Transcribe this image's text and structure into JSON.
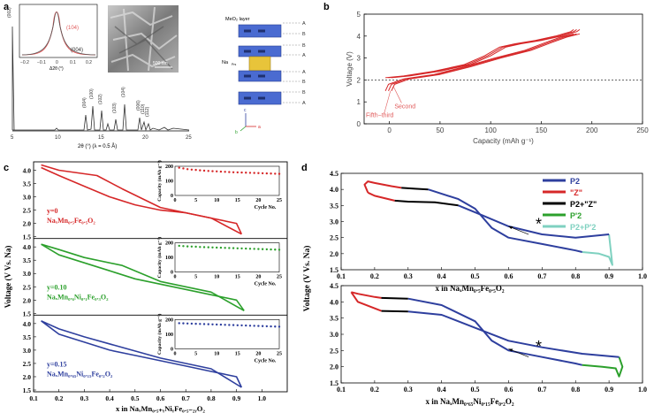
{
  "panel_labels": {
    "a": "a",
    "b": "b",
    "c": "c",
    "d": "d"
  },
  "colors": {
    "red": "#d62728",
    "pink": "#e05a5a",
    "green": "#2ca02c",
    "blue": "#2e3f9e",
    "black": "#000000",
    "mint": "#7fd1c0",
    "gray": "#999999"
  },
  "panel_a": {
    "xlabel": "2θ (°) (λ = 0.5 Å)",
    "ticks": [
      "5",
      "10",
      "15",
      "20",
      "25"
    ],
    "peaks": [
      "(002)",
      "(004)",
      "(100)",
      "(102)",
      "(103)",
      "(104)",
      "(006)",
      "(110)",
      "(112)"
    ],
    "inset": {
      "xlabel": "Δ2θ (°)",
      "ticks": [
        "−0.2",
        "−0.1",
        "0",
        "0.1",
        "0.2"
      ],
      "labels": [
        "(104)",
        "(004)"
      ]
    },
    "sem_scale": "500 nm",
    "structure_labels": {
      "layer": "MeO₂ layer",
      "na": "Na",
      "na_sub": "Prs",
      "stack": [
        "A",
        "B",
        "B",
        "A",
        "A",
        "B",
        "B",
        "A"
      ]
    },
    "axes_glyph": {
      "c": "c",
      "a": "a",
      "b": "b"
    }
  },
  "chart_data": [
    {
      "panel": "b",
      "type": "line",
      "xlabel": "Capacity (mAh g⁻¹)",
      "ylabel": "Voltage (V)",
      "xlim": [
        -25,
        250
      ],
      "ylim": [
        0,
        5
      ],
      "xticks": [
        "0",
        "50",
        "100",
        "150",
        "200",
        "250"
      ],
      "yticks": [
        "0",
        "1",
        "2",
        "3",
        "4",
        "5"
      ],
      "reference_line": 2.0,
      "annotations": [
        "Second",
        "Fifth−third"
      ],
      "series": [
        {
          "x": [
            2,
            20,
            50,
            80,
            100,
            115,
            130,
            150,
            170,
            185,
            188
          ],
          "y": [
            2.1,
            2.18,
            2.4,
            2.7,
            3.1,
            3.5,
            3.65,
            3.8,
            4.0,
            4.2,
            4.3
          ]
        },
        {
          "x": [
            188,
            175,
            160,
            140,
            110,
            80,
            50,
            20,
            5,
            2
          ],
          "y": [
            4.1,
            3.95,
            3.7,
            3.35,
            3.0,
            2.6,
            2.25,
            2.05,
            1.8,
            1.5
          ]
        }
      ]
    },
    {
      "panel": "c",
      "type": "line",
      "xlabel": "x in NaₓMn₀.₅₊ᵧNiᵧFe₀.₅₋₂ᵧO₂",
      "ylabel": "Voltage (V Vs. Na)",
      "xlim": [
        0.1,
        1.1
      ],
      "ylim": [
        1.5,
        4.25
      ],
      "xticks": [
        "0.1",
        "0.2",
        "0.3",
        "0.4",
        "0.5",
        "0.6",
        "0.7",
        "0.8",
        "0.9",
        "1.0"
      ],
      "yticks": [
        "1.5",
        "2.0",
        "2.5",
        "3.0",
        "3.5",
        "4.0"
      ],
      "subplots": [
        {
          "label": "y=0",
          "formula": "NaₓMn₀.₅Fe₀.₅O₂",
          "color_key": "red",
          "series": [
            {
              "x": [
                0.13,
                0.2,
                0.3,
                0.4,
                0.5,
                0.6,
                0.7,
                0.8,
                0.9,
                0.92
              ],
              "y": [
                4.1,
                3.8,
                3.4,
                3.0,
                2.7,
                2.5,
                2.4,
                2.2,
                2.0,
                1.6
              ]
            },
            {
              "x": [
                0.92,
                0.8,
                0.6,
                0.45,
                0.35,
                0.2,
                0.13
              ],
              "y": [
                1.6,
                2.2,
                2.6,
                3.3,
                3.8,
                4.0,
                4.2
              ]
            }
          ],
          "inset": {
            "xlabel": "Cycle No.",
            "ylabel": "Capacity (mAh g⁻¹)",
            "xticks": [
              "0",
              "5",
              "10",
              "15",
              "20",
              "25"
            ],
            "yticks": [
              "0",
              "100",
              "200"
            ],
            "values": [
              190,
              185,
              180,
              177,
              175,
              172,
              170,
              168,
              166,
              165,
              163,
              162,
              160,
              159,
              158,
              157,
              156,
              155,
              154,
              153,
              152,
              151,
              150,
              149,
              148
            ]
          }
        },
        {
          "label": "y=0.10",
          "formula": "NaₓMn₀.₆Ni₀.₁Fe₀.₃O₂",
          "color_key": "green",
          "series": [
            {
              "x": [
                0.13,
                0.2,
                0.3,
                0.4,
                0.5,
                0.6,
                0.7,
                0.8,
                0.9,
                0.93
              ],
              "y": [
                4.1,
                3.7,
                3.4,
                3.1,
                2.8,
                2.6,
                2.4,
                2.2,
                2.0,
                1.6
              ]
            },
            {
              "x": [
                0.93,
                0.8,
                0.6,
                0.45,
                0.3,
                0.2,
                0.13
              ],
              "y": [
                1.6,
                2.3,
                2.7,
                3.3,
                3.6,
                3.9,
                4.1
              ]
            }
          ],
          "inset": {
            "xlabel": "Cycle No.",
            "ylabel": "Capacity (mAh g⁻¹)",
            "xticks": [
              "0",
              "5",
              "10",
              "15",
              "20",
              "25"
            ],
            "yticks": [
              "0",
              "100",
              "200"
            ],
            "values": [
              180,
              178,
              176,
              175,
              174,
              172,
              171,
              170,
              169,
              168,
              167,
              166,
              165,
              164,
              163,
              162,
              161,
              160,
              159,
              158,
              157,
              156,
              155,
              154,
              153
            ]
          }
        },
        {
          "label": "y=0.15",
          "formula": "NaₓMn₀.₆₅Ni₀.₁₅Fe₀.₂O₂",
          "color_key": "blue",
          "series": [
            {
              "x": [
                0.13,
                0.2,
                0.3,
                0.4,
                0.5,
                0.6,
                0.7,
                0.8,
                0.9,
                0.92
              ],
              "y": [
                4.1,
                3.6,
                3.3,
                3.0,
                2.8,
                2.6,
                2.4,
                2.2,
                2.0,
                1.6
              ]
            },
            {
              "x": [
                0.92,
                0.8,
                0.6,
                0.45,
                0.3,
                0.2,
                0.13
              ],
              "y": [
                1.6,
                2.3,
                2.7,
                3.1,
                3.5,
                3.8,
                4.1
              ]
            }
          ],
          "inset": {
            "xlabel": "Cycle No.",
            "ylabel": "Capacity (mAh g⁻¹)",
            "xticks": [
              "0",
              "5",
              "10",
              "15",
              "20",
              "25"
            ],
            "yticks": [
              "0",
              "100",
              "200"
            ],
            "values": [
              175,
              174,
              173,
              172,
              171,
              170,
              169,
              168,
              167,
              166,
              165,
              164,
              163,
              162,
              161,
              160,
              159,
              158,
              157,
              156,
              155,
              154,
              153,
              152,
              151
            ]
          }
        }
      ]
    },
    {
      "panel": "d",
      "type": "line",
      "ylabel": "Voltage (V Vs. Na)",
      "legend": [
        "P2",
        "\"Z\"",
        "P2+\"Z\"",
        "P'2",
        "P2+P'2"
      ],
      "legend_colors": [
        "blue",
        "red",
        "black",
        "green",
        "mint"
      ],
      "xlim": [
        0.1,
        1.0
      ],
      "ylim": [
        1.5,
        4.5
      ],
      "xticks": [
        "0.1",
        "0.2",
        "0.3",
        "0.4",
        "0.5",
        "0.6",
        "0.7",
        "0.8",
        "0.9",
        "1.0"
      ],
      "yticks": [
        "1.5",
        "2.0",
        "2.5",
        "3.0",
        "3.5",
        "4.0",
        "4.5"
      ],
      "marker": "*",
      "subplots": [
        {
          "xlabel": "x in NaₓMn₀.₅Fe₀.₅O₂",
          "segments": [
            {
              "phase": "red",
              "x": [
                0.18,
                0.17,
                0.18,
                0.2,
                0.25,
                0.28
              ],
              "y": [
                3.9,
                4.15,
                4.25,
                4.2,
                4.1,
                4.05
              ]
            },
            {
              "phase": "black",
              "x": [
                0.28,
                0.32,
                0.36
              ],
              "y": [
                4.05,
                4.02,
                4.0
              ]
            },
            {
              "phase": "blue",
              "x": [
                0.36,
                0.45,
                0.5,
                0.55,
                0.6,
                0.7,
                0.8,
                0.82
              ],
              "y": [
                4.0,
                3.7,
                3.4,
                2.8,
                2.5,
                2.3,
                2.1,
                2.05
              ]
            },
            {
              "phase": "mint",
              "x": [
                0.82,
                0.87,
                0.9,
                0.91,
                0.9
              ],
              "y": [
                2.05,
                2.0,
                1.9,
                1.65,
                2.6
              ]
            },
            {
              "phase": "blue",
              "x": [
                0.9,
                0.8,
                0.7,
                0.6,
                0.52,
                0.45
              ],
              "y": [
                2.6,
                2.5,
                2.6,
                2.85,
                3.2,
                3.5
              ]
            },
            {
              "phase": "black",
              "x": [
                0.45,
                0.38,
                0.3,
                0.26
              ],
              "y": [
                3.5,
                3.6,
                3.62,
                3.65
              ]
            },
            {
              "phase": "red",
              "x": [
                0.26,
                0.2,
                0.18
              ],
              "y": [
                3.65,
                3.8,
                3.9
              ]
            }
          ]
        },
        {
          "xlabel": "x in NaₓMn₀.₆₅Ni₀.₁₅Fe₀.₂O₂",
          "segments": [
            {
              "phase": "red",
              "x": [
                0.13,
                0.15,
                0.2,
                0.22
              ],
              "y": [
                4.3,
                4.25,
                4.15,
                4.12
              ]
            },
            {
              "phase": "black",
              "x": [
                0.22,
                0.3
              ],
              "y": [
                4.12,
                4.1
              ]
            },
            {
              "phase": "blue",
              "x": [
                0.3,
                0.4,
                0.5,
                0.55,
                0.6,
                0.7,
                0.8,
                0.82
              ],
              "y": [
                4.1,
                3.9,
                3.4,
                2.8,
                2.5,
                2.3,
                2.1,
                2.05
              ]
            },
            {
              "phase": "green",
              "x": [
                0.82,
                0.88,
                0.92,
                0.93,
                0.94,
                0.93
              ],
              "y": [
                2.05,
                2.0,
                1.95,
                1.7,
                2.0,
                2.3
              ]
            },
            {
              "phase": "blue",
              "x": [
                0.93,
                0.82,
                0.7,
                0.6,
                0.5,
                0.4,
                0.3
              ],
              "y": [
                2.3,
                2.4,
                2.6,
                2.8,
                3.2,
                3.6,
                3.7
              ]
            },
            {
              "phase": "black",
              "x": [
                0.3,
                0.22
              ],
              "y": [
                3.7,
                3.72
              ]
            },
            {
              "phase": "red",
              "x": [
                0.22,
                0.15,
                0.13
              ],
              "y": [
                3.72,
                4.0,
                4.3
              ]
            }
          ]
        }
      ]
    }
  ]
}
